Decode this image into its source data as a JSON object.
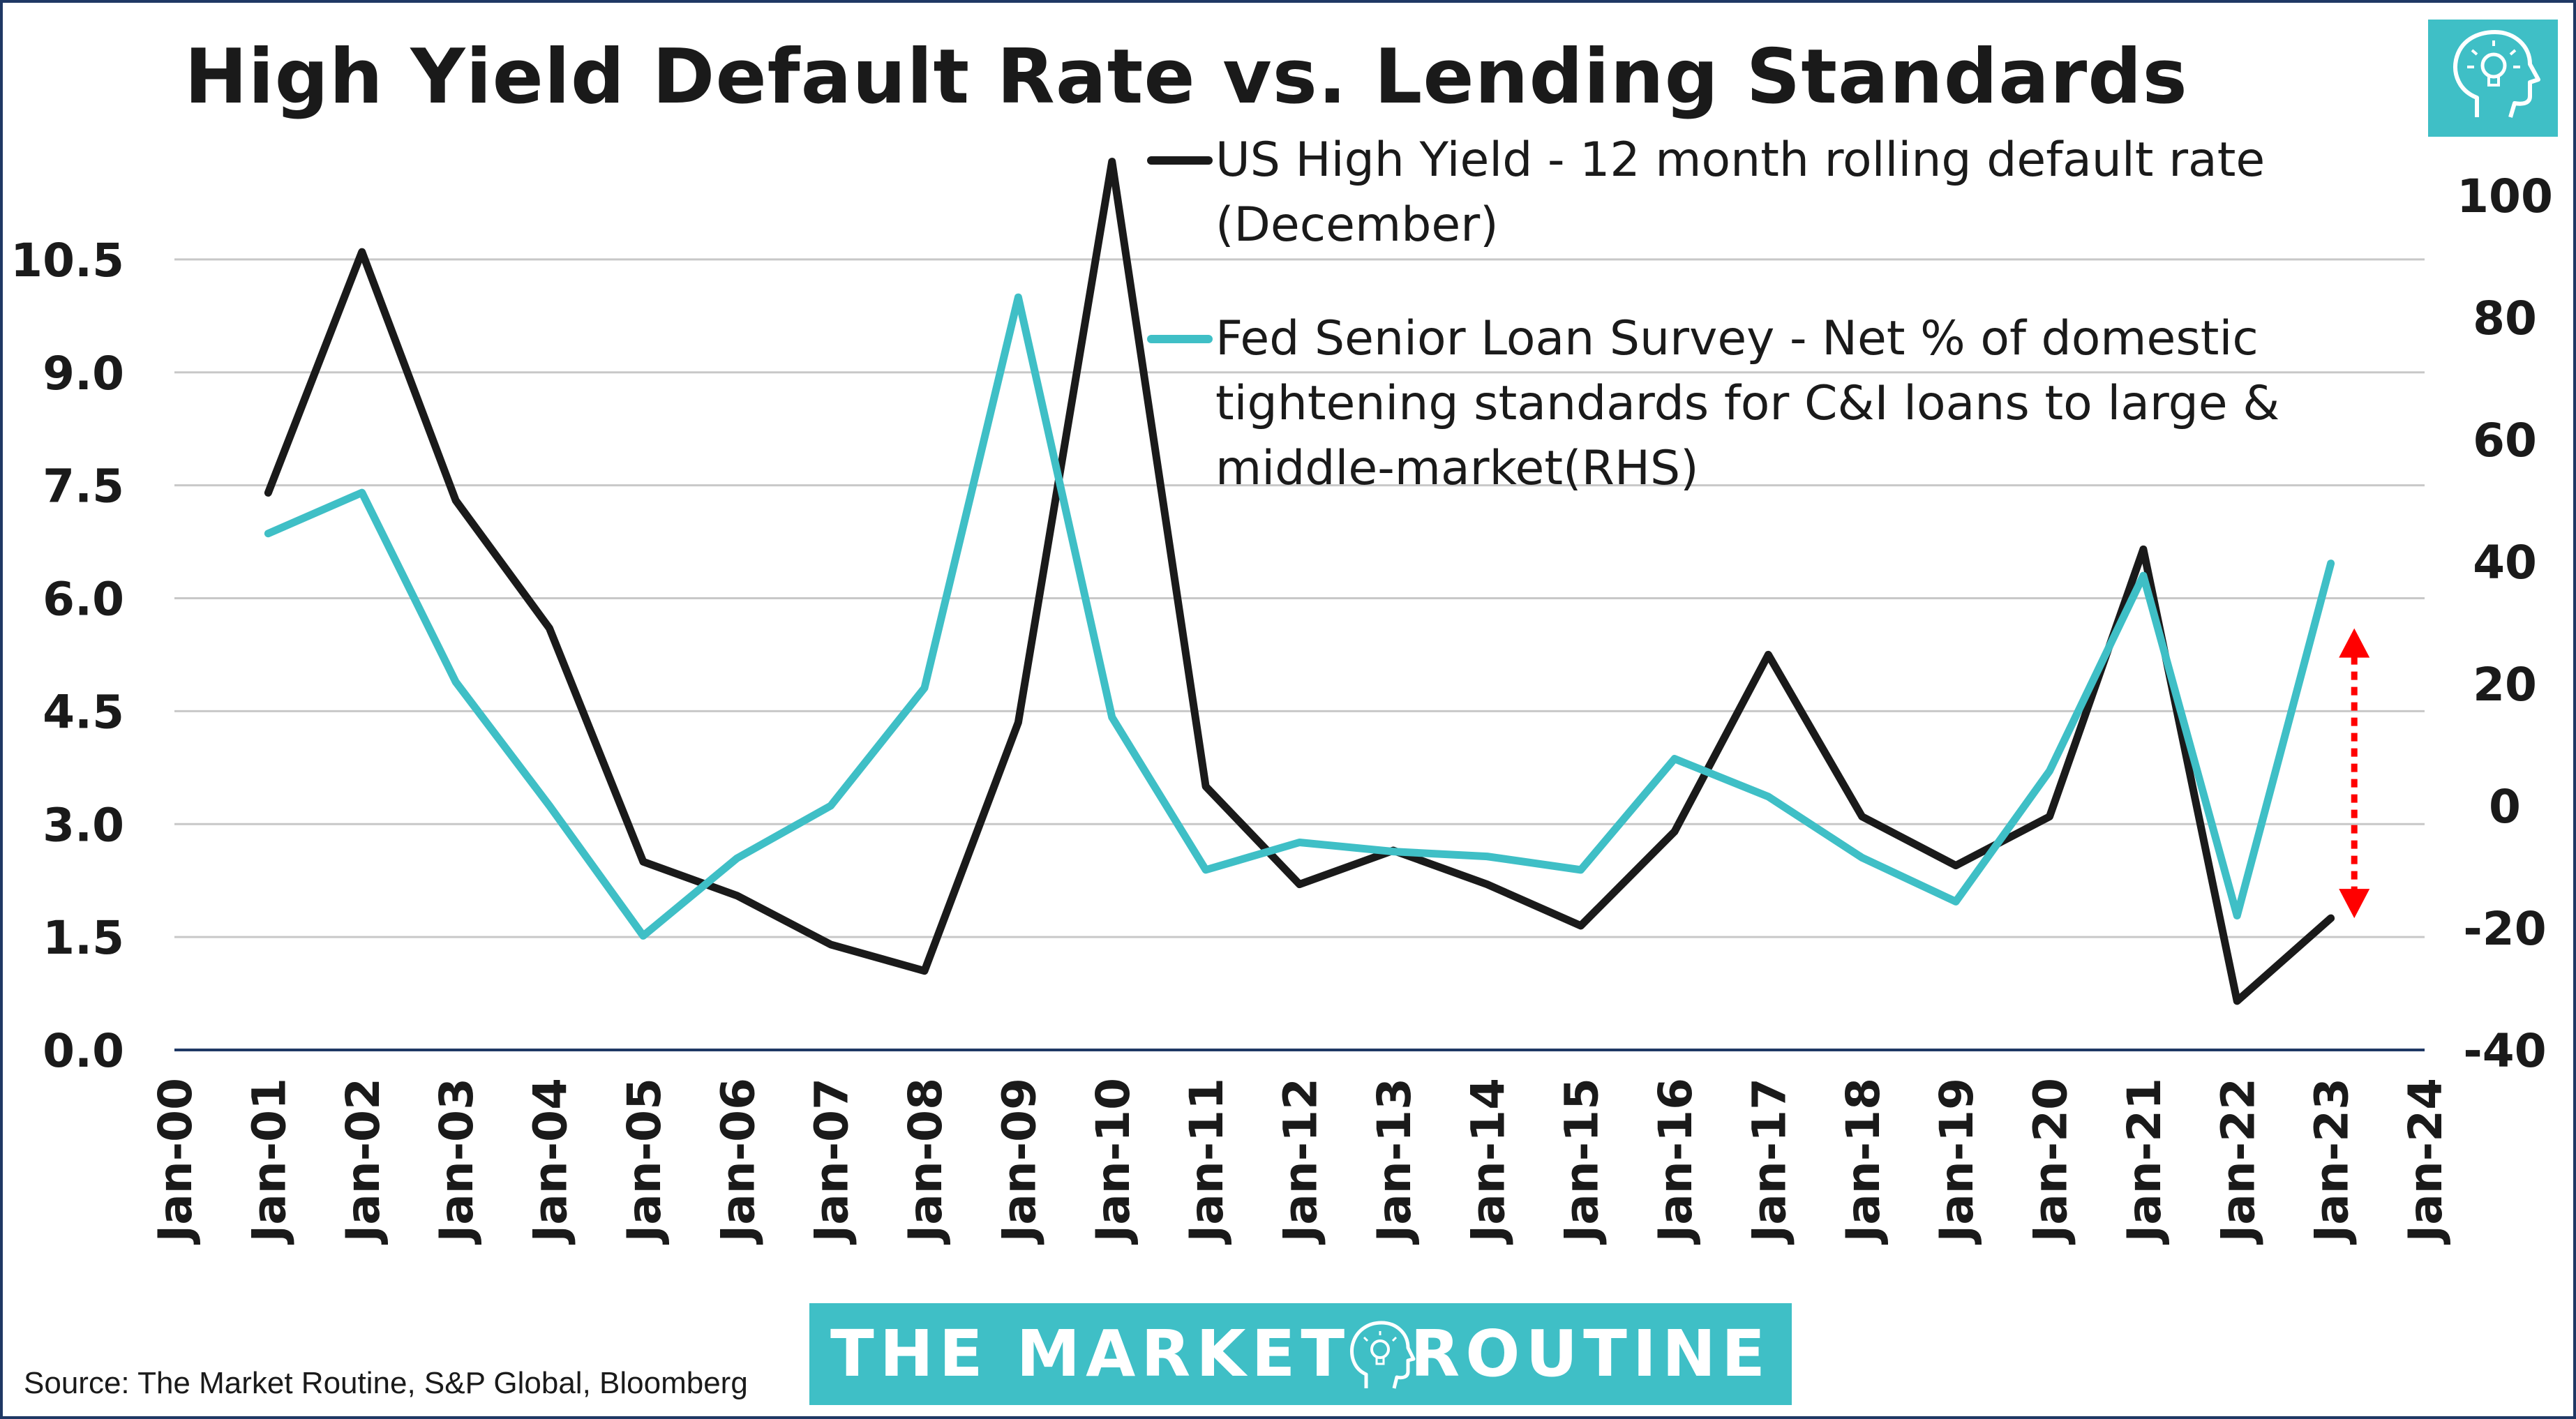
{
  "title": "High Yield Default Rate vs. Lending Standards",
  "source": "Source: The Market Routine, S&P Global, Bloomberg",
  "brand": {
    "left": "THE MARKET",
    "right": "ROUTINE",
    "color": "#3fbfc6"
  },
  "chart_data": {
    "type": "line",
    "title": "High Yield Default Rate vs. Lending Standards",
    "x_ticks": [
      "Jan-00",
      "Jan-01",
      "Jan-02",
      "Jan-03",
      "Jan-04",
      "Jan-05",
      "Jan-06",
      "Jan-07",
      "Jan-08",
      "Jan-09",
      "Jan-10",
      "Jan-11",
      "Jan-12",
      "Jan-13",
      "Jan-14",
      "Jan-15",
      "Jan-16",
      "Jan-17",
      "Jan-18",
      "Jan-19",
      "Jan-20",
      "Jan-21",
      "Jan-22",
      "Jan-23",
      "Jan-24"
    ],
    "x_range": [
      2000,
      2024
    ],
    "y_left": {
      "ticks": [
        "0.0",
        "1.5",
        "3.0",
        "4.5",
        "6.0",
        "7.5",
        "9.0",
        "10.5"
      ],
      "range": [
        0,
        12
      ]
    },
    "y_right": {
      "ticks": [
        "-40",
        "-20",
        "0",
        "20",
        "40",
        "60",
        "80",
        "100"
      ],
      "range": [
        -40,
        108
      ]
    },
    "grid": true,
    "legend_placement": "top-right",
    "series": [
      {
        "name": "US High Yield - 12 month rolling default rate (December)",
        "legend_lines": [
          "US High Yield - 12 month rolling default rate",
          "(December)"
        ],
        "axis": "left",
        "color": "#1a1a1a",
        "x": [
          2001,
          2002,
          2003,
          2004,
          2005,
          2006,
          2007,
          2008,
          2009,
          2010,
          2011,
          2012,
          2013,
          2014,
          2015,
          2016,
          2017,
          2018,
          2019,
          2020,
          2021,
          2022,
          2023
        ],
        "y": [
          7.4,
          10.6,
          7.3,
          5.6,
          2.5,
          2.05,
          1.4,
          1.05,
          4.35,
          11.8,
          3.5,
          2.2,
          2.65,
          2.2,
          1.65,
          2.9,
          5.25,
          3.1,
          2.45,
          3.1,
          6.65,
          0.65,
          1.75
        ]
      },
      {
        "name": "Fed Senior Loan Survey - Net % of domestic tightening standards for C&I loans to large & middle-market(RHS)",
        "legend_lines": [
          "Fed Senior Loan Survey - Net % of domestic",
          "tightening standards for C&I loans to large &",
          "middle-market(RHS)"
        ],
        "axis": "right",
        "color": "#3fbfc6",
        "x": [
          2001,
          2002,
          2003,
          2004,
          2005,
          2006,
          2007,
          2008,
          2009,
          2010,
          2011,
          2012,
          2013,
          2014,
          2015,
          2016,
          2017,
          2018,
          2019,
          2020,
          2021,
          2022,
          2023
        ],
        "y": [
          44.6,
          51.3,
          20.3,
          0,
          -21.3,
          -8.6,
          0,
          19.3,
          83.3,
          14.5,
          -10.5,
          -6,
          -7.5,
          -8.3,
          -10.5,
          7.7,
          1.5,
          -8.5,
          -15.7,
          5.7,
          37.7,
          -18,
          39.7
        ]
      }
    ],
    "annotation": {
      "type": "double-arrow",
      "color": "#ff0000",
      "x": 2023.25,
      "y_left": [
        1.75,
        5.6
      ]
    }
  }
}
